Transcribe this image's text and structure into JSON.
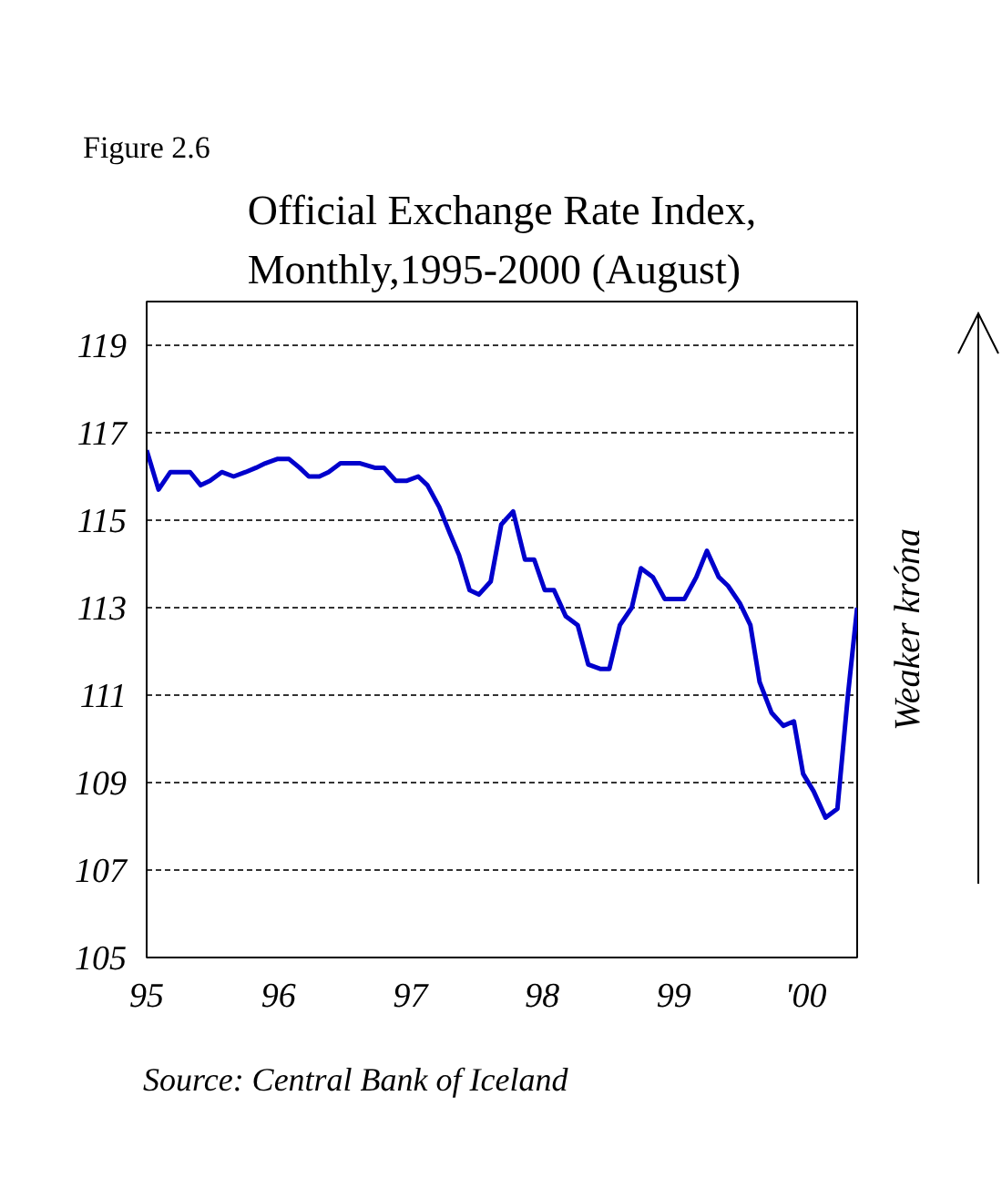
{
  "chart_data": {
    "type": "line",
    "title": "Official Exchange Rate Index,\nMonthly,1995-2000 (August)",
    "annotations": [
      "Figure 2.6",
      "Source: Central Bank of Iceland",
      "Weaker króna"
    ],
    "x": [
      1995.0,
      1995.09,
      1995.18,
      1995.33,
      1995.41,
      1995.48,
      1995.57,
      1995.66,
      1995.75,
      1995.83,
      1995.9,
      1995.99,
      1996.08,
      1996.16,
      1996.23,
      1996.31,
      1996.38,
      1996.47,
      1996.62,
      1996.73,
      1996.8,
      1996.89,
      1996.97,
      1997.06,
      1997.13,
      1997.22,
      1997.3,
      1997.37,
      1997.45,
      1997.52,
      1997.61,
      1997.69,
      1997.78,
      1997.87,
      1997.94,
      1998.02,
      1998.09,
      1998.18,
      1998.27,
      1998.35,
      1998.44,
      1998.51,
      1998.59,
      1998.68,
      1998.75,
      1998.84,
      1998.93,
      1999.01,
      1999.08,
      1999.17,
      1999.25,
      1999.34,
      1999.41,
      1999.5,
      1999.58,
      1999.65,
      1999.74,
      1999.83,
      1999.91,
      1999.98,
      2000.06,
      2000.15,
      2000.24,
      2000.32,
      2000.39
    ],
    "series": [
      {
        "color": "#0000cc",
        "values": [
          116.6,
          115.7,
          116.1,
          116.1,
          115.8,
          115.9,
          116.1,
          116.0,
          116.1,
          116.2,
          116.3,
          116.4,
          116.4,
          116.2,
          116.0,
          116.0,
          116.1,
          116.3,
          116.3,
          116.2,
          116.2,
          115.9,
          115.9,
          116.0,
          115.8,
          115.3,
          114.7,
          114.2,
          113.4,
          113.3,
          113.6,
          114.9,
          115.2,
          114.1,
          114.1,
          113.4,
          113.4,
          112.8,
          112.6,
          111.7,
          111.6,
          111.6,
          112.6,
          113.0,
          113.9,
          113.7,
          113.2,
          113.2,
          113.2,
          113.7,
          114.3,
          113.7,
          113.5,
          113.1,
          112.6,
          111.3,
          110.6,
          110.3,
          110.4,
          109.2,
          108.8,
          108.2,
          108.4,
          111.0,
          113.0
        ]
      }
    ],
    "xlim": [
      1995,
      2000.39
    ],
    "xticks": [
      {
        "value": 1995,
        "label": "95"
      },
      {
        "value": 1996,
        "label": "96"
      },
      {
        "value": 1997,
        "label": "97"
      },
      {
        "value": 1998,
        "label": "98"
      },
      {
        "value": 1999,
        "label": "99"
      },
      {
        "value": 2000,
        "label": "'00"
      }
    ],
    "ylim": [
      105,
      120
    ],
    "yticks": [
      105,
      107,
      109,
      111,
      113,
      115,
      117,
      119
    ],
    "grid": "y",
    "marker": "none",
    "line_style": "solid"
  }
}
